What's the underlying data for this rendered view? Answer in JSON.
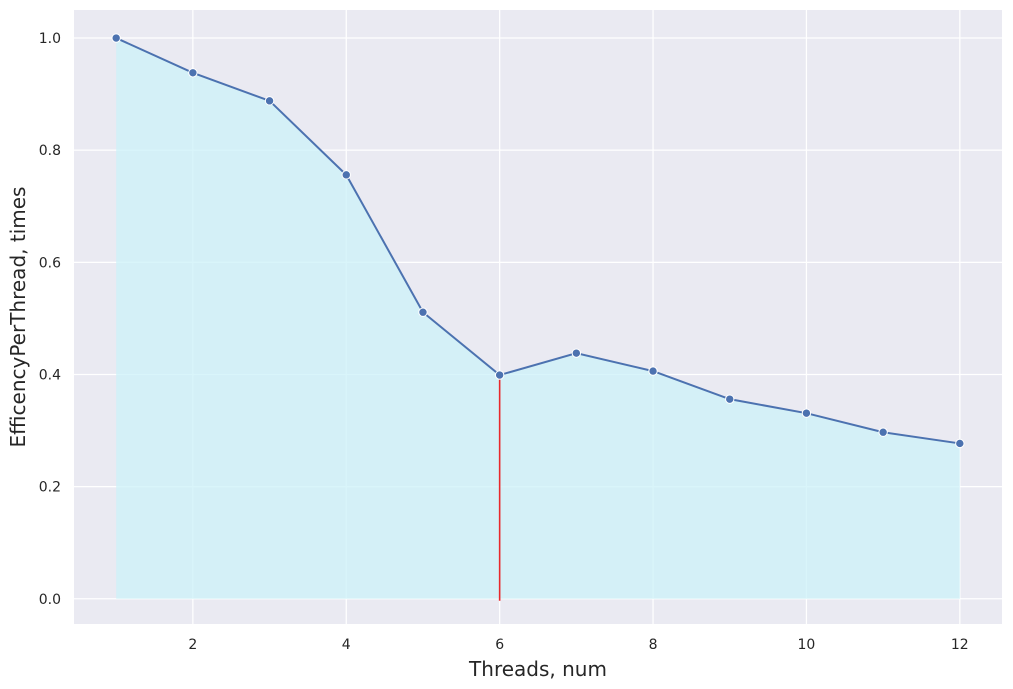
{
  "chart_data": {
    "type": "line",
    "title": "",
    "xlabel": "Threads, num",
    "ylabel": "EfficencyPerThread, times",
    "x": [
      1,
      2,
      3,
      4,
      5,
      6,
      7,
      8,
      9,
      10,
      11,
      12
    ],
    "series": [
      {
        "name": "",
        "values": [
          1.0,
          0.938,
          0.888,
          0.756,
          0.511,
          0.399,
          0.438,
          0.406,
          0.356,
          0.331,
          0.297,
          0.277
        ]
      }
    ],
    "fill_under_line": true,
    "vertical_marker_x": 6,
    "xlim": [
      0.45,
      12.55
    ],
    "ylim": [
      -0.045,
      1.05
    ],
    "xticks": [
      "2",
      "4",
      "6",
      "8",
      "10",
      "12"
    ],
    "yticks": [
      "0.0",
      "0.2",
      "0.4",
      "0.6",
      "0.8",
      "1.0"
    ],
    "grid": true,
    "colors": {
      "background": "#eaeaf2",
      "grid": "#ffffff",
      "line": "#4c72b0",
      "marker": "#4c72b0",
      "fill": "#ccf2f8",
      "vertical_marker": "#e8282b"
    }
  }
}
